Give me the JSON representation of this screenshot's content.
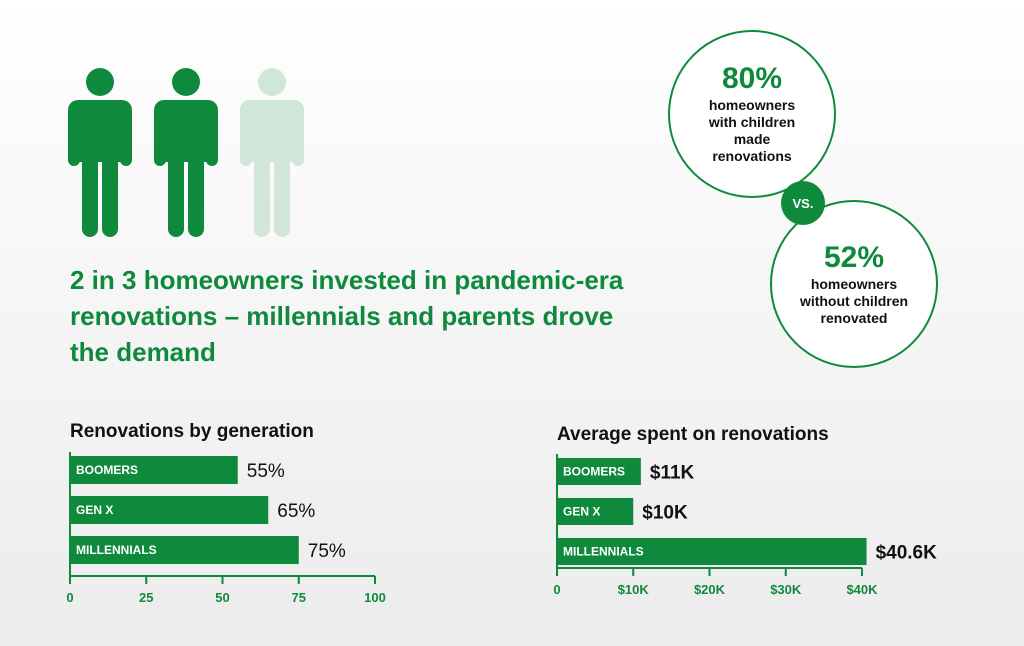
{
  "people_icon": {
    "filled": 2,
    "total": 3,
    "color_filled": "#0f8a3c",
    "color_empty": "#cfe6d8"
  },
  "headline": "2 in 3 homeowners invested in pandemic-era renovations – millennials and parents drove the demand",
  "comparison": {
    "a_value": "80%",
    "a_desc": "homeowners with children made renovations",
    "vs": "VS.",
    "b_value": "52%",
    "b_desc": "homeowners without children renovated"
  },
  "colors": {
    "accent": "#0f8a3c",
    "text": "#111111"
  },
  "chart_data": [
    {
      "type": "bar",
      "orientation": "horizontal",
      "title": "Renovations by generation",
      "categories": [
        "BOOMERS",
        "GEN X",
        "MILLENNIALS"
      ],
      "values": [
        55,
        65,
        75
      ],
      "value_labels": [
        "55%",
        "65%",
        "75%"
      ],
      "xlim": [
        0,
        100
      ],
      "xticks": [
        0,
        25,
        50,
        75,
        100
      ],
      "xtick_labels": [
        "0",
        "25",
        "50",
        "75",
        "100"
      ]
    },
    {
      "type": "bar",
      "orientation": "horizontal",
      "title": "Average spent on renovations",
      "categories": [
        "BOOMERS",
        "GEN X",
        "MILLENNIALS"
      ],
      "values": [
        11,
        10,
        40.6
      ],
      "value_labels": [
        "$11K",
        "$10K",
        "$40.6K"
      ],
      "xlim": [
        0,
        40
      ],
      "xticks": [
        0,
        10,
        20,
        30,
        40
      ],
      "xtick_labels": [
        "0",
        "$10K",
        "$20K",
        "$30K",
        "$40K"
      ]
    }
  ]
}
